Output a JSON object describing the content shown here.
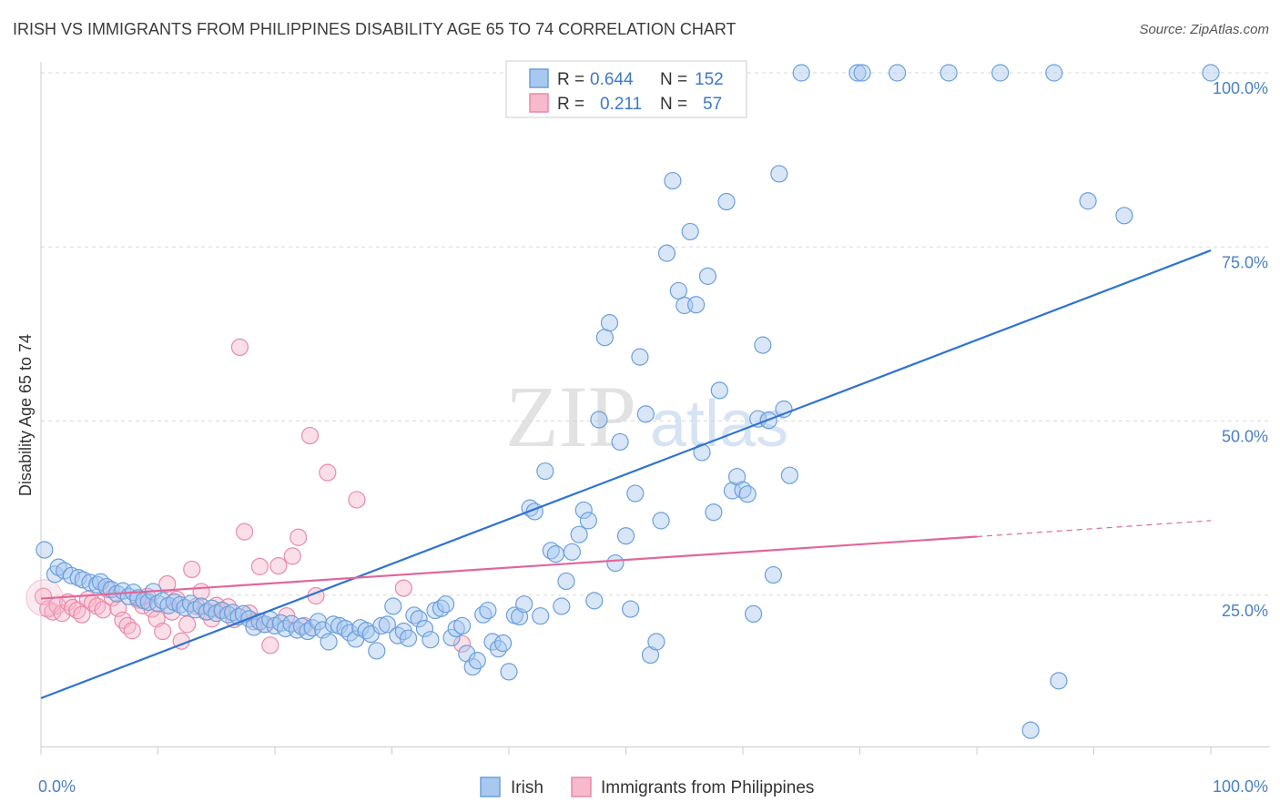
{
  "title": "IRISH VS IMMIGRANTS FROM PHILIPPINES DISABILITY AGE 65 TO 74 CORRELATION CHART",
  "source": "Source: ZipAtlas.com",
  "watermark": {
    "zip": "ZIP",
    "atlas": "atlas"
  },
  "colors": {
    "irish_fill": "#a9c8f0",
    "irish_stroke": "#6a9fdc",
    "irish_line": "#2f73d0",
    "phil_fill": "#f7b9cc",
    "phil_stroke": "#e98aa8",
    "phil_line": "#e0679a",
    "grid": "#d9d9d9",
    "tick_label": "#4a80c4"
  },
  "legend": {
    "rows": [
      {
        "r_label": "R =",
        "r_value": "0.644",
        "n_label": "N =",
        "n_value": "152"
      },
      {
        "r_label": "R =",
        "r_value": "0.211",
        "n_label": "N =",
        "n_value": "57"
      }
    ]
  },
  "bottom_legend": [
    "Irish",
    "Immigrants from Philippines"
  ],
  "chart_data": {
    "type": "scatter",
    "title": "IRISH VS IMMIGRANTS FROM PHILIPPINES DISABILITY AGE 65 TO 74 CORRELATION CHART",
    "xlabel": "",
    "ylabel": "Disability Age 65 to 74",
    "xlim": [
      0,
      100
    ],
    "ylim": [
      0,
      100
    ],
    "x_tick_labels": [
      "0.0%",
      "100.0%"
    ],
    "y_ticks": [
      25,
      50,
      75,
      100
    ],
    "y_tick_labels": [
      "25.0%",
      "50.0%",
      "75.0%",
      "100.0%"
    ],
    "grid": true,
    "legend_position": "top-center",
    "series": [
      {
        "name": "Irish",
        "r": 0.644,
        "n": 152,
        "trendline": {
          "x": [
            0,
            100
          ],
          "y": [
            10.2,
            74.5
          ]
        },
        "points": [
          [
            0.3,
            31.5
          ],
          [
            1.2,
            28.0
          ],
          [
            1.5,
            29.0
          ],
          [
            2.0,
            28.5
          ],
          [
            2.6,
            27.8
          ],
          [
            3.2,
            27.5
          ],
          [
            3.6,
            27.2
          ],
          [
            4.2,
            26.8
          ],
          [
            4.8,
            26.5
          ],
          [
            5.1,
            26.9
          ],
          [
            5.6,
            26.2
          ],
          [
            6.0,
            25.8
          ],
          [
            6.5,
            25.2
          ],
          [
            7.0,
            25.6
          ],
          [
            7.5,
            24.8
          ],
          [
            7.9,
            25.4
          ],
          [
            8.3,
            24.6
          ],
          [
            8.8,
            24.2
          ],
          [
            9.2,
            24.0
          ],
          [
            9.6,
            25.5
          ],
          [
            10.0,
            23.8
          ],
          [
            10.4,
            24.2
          ],
          [
            10.9,
            23.5
          ],
          [
            11.4,
            24.0
          ],
          [
            11.9,
            23.6
          ],
          [
            12.3,
            23.2
          ],
          [
            12.8,
            23.8
          ],
          [
            13.2,
            22.9
          ],
          [
            13.7,
            23.4
          ],
          [
            14.2,
            22.6
          ],
          [
            14.6,
            23.1
          ],
          [
            15.0,
            22.4
          ],
          [
            15.5,
            22.8
          ],
          [
            16.0,
            22.2
          ],
          [
            16.4,
            22.5
          ],
          [
            16.9,
            21.9
          ],
          [
            17.3,
            22.3
          ],
          [
            17.8,
            21.6
          ],
          [
            18.2,
            20.4
          ],
          [
            18.7,
            21.2
          ],
          [
            19.1,
            20.8
          ],
          [
            19.6,
            21.5
          ],
          [
            20.0,
            20.6
          ],
          [
            20.5,
            21.0
          ],
          [
            20.9,
            20.2
          ],
          [
            21.4,
            20.9
          ],
          [
            21.9,
            20.0
          ],
          [
            22.3,
            20.5
          ],
          [
            22.8,
            19.8
          ],
          [
            23.2,
            20.3
          ],
          [
            23.7,
            21.2
          ],
          [
            24.1,
            20.0
          ],
          [
            24.6,
            18.3
          ],
          [
            25.0,
            20.8
          ],
          [
            25.5,
            20.6
          ],
          [
            26.0,
            20.2
          ],
          [
            26.4,
            19.6
          ],
          [
            26.9,
            18.7
          ],
          [
            27.3,
            20.3
          ],
          [
            27.8,
            19.9
          ],
          [
            28.2,
            19.4
          ],
          [
            28.7,
            17.0
          ],
          [
            29.1,
            20.6
          ],
          [
            29.6,
            20.8
          ],
          [
            30.1,
            23.4
          ],
          [
            30.5,
            19.2
          ],
          [
            31.0,
            19.8
          ],
          [
            31.4,
            18.8
          ],
          [
            31.9,
            22.1
          ],
          [
            32.3,
            21.6
          ],
          [
            32.8,
            20.2
          ],
          [
            33.3,
            18.6
          ],
          [
            33.7,
            22.8
          ],
          [
            34.2,
            23.1
          ],
          [
            34.6,
            23.7
          ],
          [
            35.1,
            18.9
          ],
          [
            35.5,
            20.2
          ],
          [
            36.0,
            20.6
          ],
          [
            36.4,
            16.6
          ],
          [
            36.9,
            14.7
          ],
          [
            37.3,
            15.6
          ],
          [
            37.8,
            22.2
          ],
          [
            38.2,
            22.8
          ],
          [
            38.6,
            18.3
          ],
          [
            39.1,
            17.3
          ],
          [
            39.5,
            18.1
          ],
          [
            40.0,
            14.0
          ],
          [
            40.5,
            22.1
          ],
          [
            40.9,
            21.9
          ],
          [
            41.3,
            23.7
          ],
          [
            41.8,
            37.5
          ],
          [
            42.2,
            37.0
          ],
          [
            42.7,
            22.0
          ],
          [
            43.1,
            42.8
          ],
          [
            43.6,
            31.4
          ],
          [
            44.0,
            30.9
          ],
          [
            44.5,
            23.4
          ],
          [
            44.9,
            27.0
          ],
          [
            45.4,
            31.2
          ],
          [
            46.0,
            33.7
          ],
          [
            46.4,
            37.2
          ],
          [
            46.8,
            35.7
          ],
          [
            47.3,
            24.2
          ],
          [
            47.7,
            50.2
          ],
          [
            48.2,
            62.0
          ],
          [
            48.6,
            64.1
          ],
          [
            49.1,
            29.6
          ],
          [
            49.5,
            47.0
          ],
          [
            50.0,
            33.5
          ],
          [
            50.4,
            23.0
          ],
          [
            50.8,
            39.6
          ],
          [
            51.2,
            59.2
          ],
          [
            51.7,
            51.0
          ],
          [
            52.1,
            16.4
          ],
          [
            52.6,
            18.3
          ],
          [
            53.0,
            35.7
          ],
          [
            53.5,
            74.1
          ],
          [
            54.0,
            84.5
          ],
          [
            54.5,
            68.7
          ],
          [
            55.0,
            66.6
          ],
          [
            55.5,
            77.2
          ],
          [
            56.0,
            66.7
          ],
          [
            56.5,
            45.5
          ],
          [
            57.0,
            70.8
          ],
          [
            57.5,
            36.9
          ],
          [
            58.0,
            54.4
          ],
          [
            58.6,
            81.5
          ],
          [
            59.1,
            40.0
          ],
          [
            59.5,
            42.0
          ],
          [
            60.0,
            40.1
          ],
          [
            60.4,
            39.5
          ],
          [
            60.9,
            22.3
          ],
          [
            61.3,
            50.3
          ],
          [
            61.7,
            60.9
          ],
          [
            62.2,
            50.1
          ],
          [
            62.6,
            27.9
          ],
          [
            63.1,
            85.5
          ],
          [
            63.5,
            51.7
          ],
          [
            64.0,
            42.2
          ],
          [
            59.0,
            100.0
          ],
          [
            65.0,
            100.0
          ],
          [
            69.8,
            100.0
          ],
          [
            70.2,
            100.0
          ],
          [
            73.2,
            100.0
          ],
          [
            77.6,
            100.0
          ],
          [
            82.0,
            100.0
          ],
          [
            84.6,
            5.6
          ],
          [
            86.6,
            100.0
          ],
          [
            87.0,
            12.7
          ],
          [
            89.5,
            81.6
          ],
          [
            92.6,
            79.5
          ],
          [
            100.0,
            100.0
          ]
        ]
      },
      {
        "name": "Immigrants from Philippines",
        "r": 0.211,
        "n": 57,
        "trendline": {
          "x": [
            0,
            80
          ],
          "y": [
            24.5,
            33.4
          ]
        },
        "trendline_dashed": {
          "x": [
            80,
            100
          ],
          "y": [
            33.4,
            35.7
          ]
        },
        "points": [
          [
            0.2,
            24.8
          ],
          [
            0.6,
            23.0
          ],
          [
            1.0,
            22.6
          ],
          [
            1.4,
            23.5
          ],
          [
            1.8,
            22.4
          ],
          [
            2.3,
            24.0
          ],
          [
            2.7,
            23.2
          ],
          [
            3.1,
            22.8
          ],
          [
            3.5,
            22.2
          ],
          [
            4.0,
            24.4
          ],
          [
            4.4,
            23.9
          ],
          [
            4.8,
            23.4
          ],
          [
            5.3,
            22.9
          ],
          [
            5.7,
            25.8
          ],
          [
            6.1,
            24.6
          ],
          [
            6.6,
            23.1
          ],
          [
            7.0,
            21.4
          ],
          [
            7.4,
            20.6
          ],
          [
            7.8,
            19.9
          ],
          [
            8.3,
            24.3
          ],
          [
            8.7,
            23.5
          ],
          [
            9.1,
            24.8
          ],
          [
            9.5,
            23.0
          ],
          [
            9.9,
            21.6
          ],
          [
            10.4,
            19.8
          ],
          [
            10.8,
            26.6
          ],
          [
            11.2,
            22.6
          ],
          [
            11.6,
            24.4
          ],
          [
            12.0,
            18.4
          ],
          [
            12.5,
            20.8
          ],
          [
            12.9,
            28.7
          ],
          [
            13.3,
            23.4
          ],
          [
            13.7,
            25.5
          ],
          [
            14.1,
            22.6
          ],
          [
            14.6,
            21.6
          ],
          [
            15.0,
            23.5
          ],
          [
            15.4,
            22.8
          ],
          [
            16.0,
            23.3
          ],
          [
            16.5,
            21.5
          ],
          [
            17.0,
            60.6
          ],
          [
            17.4,
            34.1
          ],
          [
            17.8,
            22.4
          ],
          [
            18.2,
            21.2
          ],
          [
            18.7,
            29.1
          ],
          [
            19.2,
            20.8
          ],
          [
            19.6,
            17.8
          ],
          [
            20.3,
            29.2
          ],
          [
            21.0,
            22.0
          ],
          [
            21.5,
            30.6
          ],
          [
            22.0,
            33.3
          ],
          [
            22.5,
            20.6
          ],
          [
            23.0,
            47.9
          ],
          [
            23.5,
            24.9
          ],
          [
            24.5,
            42.6
          ],
          [
            27.0,
            38.7
          ],
          [
            31.0,
            26.0
          ],
          [
            36.0,
            18.0
          ]
        ]
      }
    ]
  }
}
